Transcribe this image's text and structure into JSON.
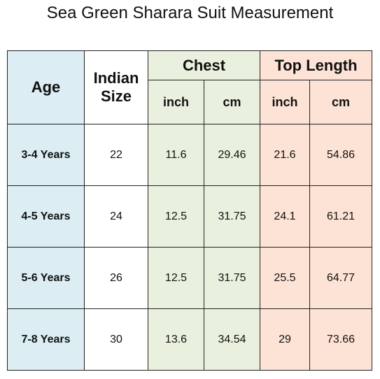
{
  "title": "Sea Green Sharara Suit Measurement",
  "headers": {
    "age": "Age",
    "indian_size_line1": "Indian",
    "indian_size_line2": "Size",
    "chest": "Chest",
    "top_length": "Top Length",
    "chest_inch": "inch",
    "chest_cm": "cm",
    "top_inch": "inch",
    "top_cm": "cm"
  },
  "rows": [
    {
      "age": "3-4 Years",
      "size": "22",
      "chest_inch": "11.6",
      "chest_cm": "29.46",
      "top_inch": "21.6",
      "top_cm": "54.86"
    },
    {
      "age": "4-5 Years",
      "size": "24",
      "chest_inch": "12.5",
      "chest_cm": "31.75",
      "top_inch": "24.1",
      "top_cm": "61.21"
    },
    {
      "age": "5-6 Years",
      "size": "26",
      "chest_inch": "12.5",
      "chest_cm": "31.75",
      "top_inch": "25.5",
      "top_cm": "64.77"
    },
    {
      "age": "7-8 Years",
      "size": "30",
      "chest_inch": "13.6",
      "chest_cm": "34.54",
      "top_inch": "29",
      "top_cm": "73.66"
    }
  ],
  "colors": {
    "age_column": "#dcedf3",
    "chest_group": "#e9f1de",
    "top_length_group": "#fde3d6"
  }
}
